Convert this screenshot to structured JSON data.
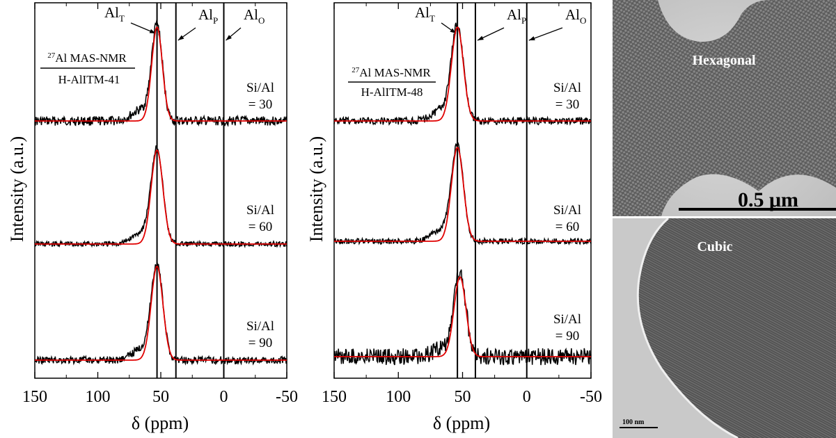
{
  "chart_data": [
    {
      "type": "line",
      "title": "",
      "xlabel": "δ (ppm)",
      "ylabel": "Intensity (a.u.)",
      "xlim": [
        150,
        -50
      ],
      "x_ticks": [
        150,
        100,
        50,
        0,
        -50
      ],
      "x_tick_labels": [
        "150",
        "100",
        "50",
        "0",
        "-50"
      ],
      "reference_lines": [
        {
          "x": 53,
          "label_main": "Al",
          "label_sub": "T"
        },
        {
          "x": 38,
          "label_main": "Al",
          "label_sub": "P"
        },
        {
          "x": 0,
          "label_main": "Al",
          "label_sub": "O"
        }
      ],
      "annotation": {
        "superscript": "27",
        "line1": "Al MAS-NMR",
        "line2": "H-AlITM-41"
      },
      "series": [
        {
          "label_line1": "Si/Al",
          "label_line2": "= 30",
          "peak_x": 53,
          "fwhm": 10,
          "amplitude": 1.0,
          "noise": 0.05,
          "experimental_color": "#000000",
          "fit_color": "#e00000"
        },
        {
          "label_line1": "Si/Al",
          "label_line2": "= 60",
          "peak_x": 53,
          "fwhm": 11,
          "amplitude": 1.0,
          "noise": 0.03,
          "experimental_color": "#000000",
          "fit_color": "#e00000"
        },
        {
          "label_line1": "Si/Al",
          "label_line2": "= 90",
          "peak_x": 53,
          "fwhm": 11,
          "amplitude": 1.0,
          "noise": 0.04,
          "experimental_color": "#000000",
          "fit_color": "#e00000"
        }
      ]
    },
    {
      "type": "line",
      "title": "",
      "xlabel": "δ (ppm)",
      "ylabel": "Intensity (a.u.)",
      "xlim": [
        150,
        -50
      ],
      "x_ticks": [
        150,
        100,
        50,
        0,
        -50
      ],
      "x_tick_labels": [
        "150",
        "100",
        "50",
        "0",
        "-50"
      ],
      "reference_lines": [
        {
          "x": 54,
          "label_main": "Al",
          "label_sub": "T"
        },
        {
          "x": 40,
          "label_main": "Al",
          "label_sub": "P"
        },
        {
          "x": 0,
          "label_main": "Al",
          "label_sub": "O"
        }
      ],
      "annotation": {
        "superscript": "27",
        "line1": "Al MAS-NMR",
        "line2": "H-AlITM-48"
      },
      "series": [
        {
          "label_line1": "Si/Al",
          "label_line2": "= 30",
          "peak_x": 54,
          "fwhm": 11,
          "amplitude": 1.0,
          "noise": 0.04,
          "experimental_color": "#000000",
          "fit_color": "#e00000"
        },
        {
          "label_line1": "Si/Al",
          "label_line2": "= 60",
          "peak_x": 54,
          "fwhm": 11,
          "amplitude": 1.0,
          "noise": 0.03,
          "experimental_color": "#000000",
          "fit_color": "#e00000"
        },
        {
          "label_line1": "Si/Al",
          "label_line2": "= 90",
          "peak_x": 52,
          "fwhm": 11,
          "amplitude": 0.85,
          "noise": 0.09,
          "experimental_color": "#000000",
          "fit_color": "#e00000"
        }
      ]
    }
  ],
  "micrographs": [
    {
      "label": "Hexagonal",
      "scale_bar": "0.5 μm"
    },
    {
      "label": "Cubic",
      "scale_bar": "100 nm"
    }
  ]
}
